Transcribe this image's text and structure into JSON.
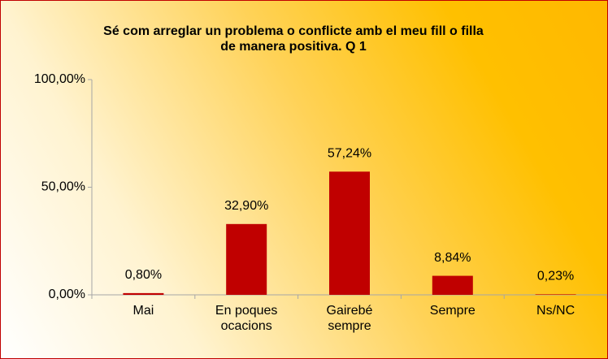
{
  "chart_data": {
    "type": "bar",
    "title": "Sé com arreglar un problema o conflicte amb el meu fill o filla de manera positiva. Q 1",
    "categories": [
      "Mai",
      "En poques ocacions",
      "Gairebé sempre",
      "Sempre",
      "Ns/NC"
    ],
    "values": [
      0.8,
      32.9,
      57.24,
      8.84,
      0.23
    ],
    "value_labels": [
      "0,80%",
      "32,90%",
      "57,24%",
      "8,84%",
      "0,23%"
    ],
    "color": "#c00000",
    "ylim": [
      0,
      100
    ],
    "yticks": [
      {
        "value": 0,
        "label": "0,00%"
      },
      {
        "value": 50,
        "label": "50,00%"
      },
      {
        "value": 100,
        "label": "100,00%"
      }
    ],
    "grid": false
  }
}
